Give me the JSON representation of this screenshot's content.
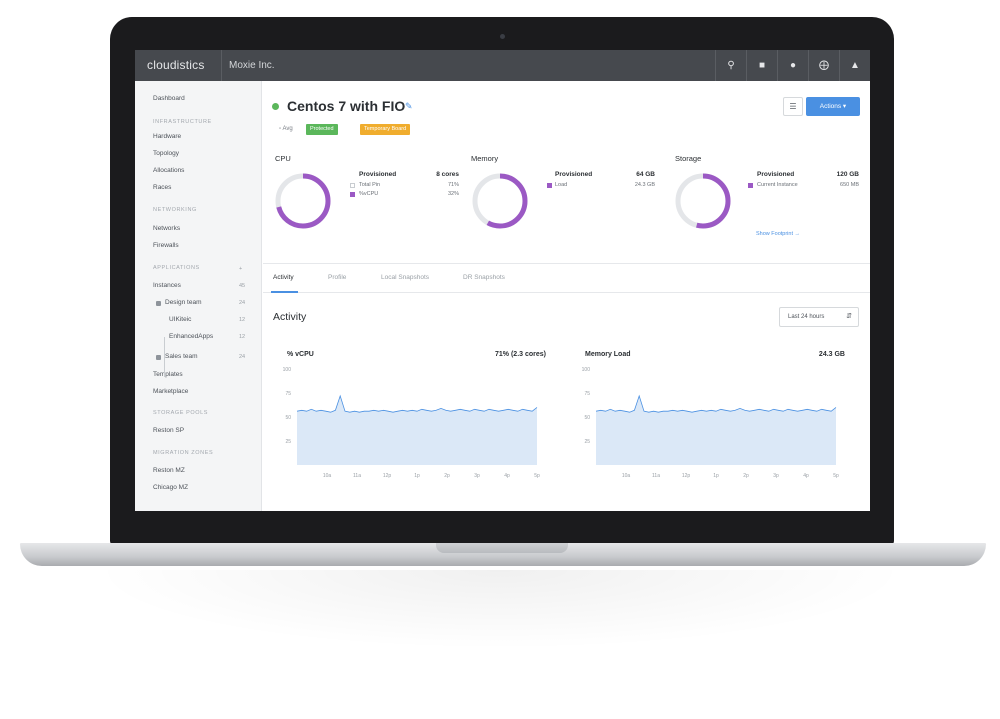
{
  "app": {
    "brand": "cloudistics",
    "org": "Moxie Inc."
  },
  "topbar_icons": [
    "search-icon",
    "bag-icon",
    "bell-icon",
    "support-icon",
    "user-icon"
  ],
  "sidebar": {
    "items": [
      {
        "kind": "item",
        "label": "Dashboard"
      },
      {
        "kind": "head",
        "label": "INFRASTRUCTURE"
      },
      {
        "kind": "item",
        "label": "Hardware"
      },
      {
        "kind": "item",
        "label": "Topology"
      },
      {
        "kind": "item",
        "label": "Allocations"
      },
      {
        "kind": "item",
        "label": "Races"
      },
      {
        "kind": "head",
        "label": "NETWORKING"
      },
      {
        "kind": "item",
        "label": "Networks"
      },
      {
        "kind": "item",
        "label": "Firewalls"
      },
      {
        "kind": "head",
        "label": "APPLICATIONS",
        "count": "+"
      },
      {
        "kind": "item",
        "label": "Instances",
        "count": "45"
      },
      {
        "kind": "group",
        "label": "Design team",
        "count": "24"
      },
      {
        "kind": "sub",
        "label": "UIKiteic",
        "count": "12"
      },
      {
        "kind": "sub",
        "label": "EnhancedApps",
        "count": "12"
      },
      {
        "kind": "group",
        "label": "Sales team",
        "count": "24"
      },
      {
        "kind": "item",
        "label": "Templates"
      },
      {
        "kind": "item",
        "label": "Marketplace"
      },
      {
        "kind": "head",
        "label": "STORAGE POOLS"
      },
      {
        "kind": "item",
        "label": "Reston SP"
      },
      {
        "kind": "head",
        "label": "MIGRATION ZONES"
      },
      {
        "kind": "item",
        "label": "Reston MZ"
      },
      {
        "kind": "item",
        "label": "Chicago MZ"
      }
    ]
  },
  "instance": {
    "name": "Centos 7 with FIO",
    "status_color": "#5bb75b",
    "meta": "Avg",
    "tags": [
      {
        "label": "Protected",
        "color": "#5bb75b"
      },
      {
        "label": "Temporary Board",
        "color": "#f0ad2e"
      }
    ]
  },
  "header_buttons": {
    "menu_icon": "list-icon",
    "actions": "Actions"
  },
  "metrics": [
    {
      "label": "CPU",
      "percent": 71,
      "provisioned_label": "Provisioned",
      "provisioned_value": "8 cores",
      "legend": [
        {
          "label": "Total Pin",
          "value": "71%",
          "color": "#ffffff"
        },
        {
          "label": "%vCPU",
          "value": "32%",
          "color": "#9b59c4"
        }
      ]
    },
    {
      "label": "Memory",
      "percent": 58,
      "provisioned_label": "Provisioned",
      "provisioned_value": "64 GB",
      "legend": [
        {
          "label": "Load",
          "value": "24.3 GB",
          "color": "#9b59c4"
        }
      ]
    },
    {
      "label": "Storage",
      "percent": 54,
      "provisioned_label": "Provisioned",
      "provisioned_value": "120 GB",
      "legend": [
        {
          "label": "Current Instance",
          "value": "650 MB",
          "color": "#9b59c4"
        }
      ],
      "link": "Show Footprint →"
    }
  ],
  "tabs": [
    {
      "label": "Activity",
      "active": true
    },
    {
      "label": "Profile",
      "active": false
    },
    {
      "label": "Local Snapshots",
      "active": false
    },
    {
      "label": "DR Snapshots",
      "active": false
    }
  ],
  "activity": {
    "title": "Activity",
    "range": "Last 24 hours"
  },
  "chart_data": [
    {
      "type": "area",
      "title": "% vCPU",
      "value_label": "71% (2.3 cores)",
      "ylim": [
        0,
        100
      ],
      "yticks": [
        100,
        75,
        50,
        25
      ],
      "xticks": [
        "10a",
        "11a",
        "12p",
        "1p",
        "2p",
        "3p",
        "4p",
        "5p"
      ],
      "values": [
        56,
        57,
        56,
        58,
        56,
        57,
        56,
        55,
        57,
        72,
        56,
        55,
        56,
        55,
        56,
        56,
        57,
        56,
        57,
        56,
        55,
        56,
        57,
        56,
        57,
        56,
        58,
        57,
        56,
        57,
        59,
        57,
        56,
        57,
        58,
        57,
        56,
        58,
        57,
        56,
        58,
        57,
        56,
        57,
        58,
        57,
        56,
        58,
        57,
        56,
        60
      ],
      "color": "#4a90e2"
    },
    {
      "type": "area",
      "title": "Memory Load",
      "value_label": "24.3 GB",
      "ylim": [
        0,
        100
      ],
      "yticks": [
        100,
        75,
        50,
        25
      ],
      "xticks": [
        "10a",
        "11a",
        "12p",
        "1p",
        "2p",
        "3p",
        "4p",
        "5p"
      ],
      "values": [
        56,
        57,
        56,
        58,
        56,
        57,
        56,
        55,
        57,
        72,
        56,
        55,
        56,
        55,
        56,
        56,
        57,
        56,
        57,
        56,
        55,
        56,
        57,
        56,
        57,
        56,
        58,
        57,
        56,
        57,
        59,
        57,
        56,
        57,
        58,
        57,
        56,
        58,
        57,
        56,
        58,
        57,
        56,
        57,
        58,
        57,
        56,
        58,
        57,
        56,
        60
      ],
      "color": "#4a90e2"
    }
  ]
}
